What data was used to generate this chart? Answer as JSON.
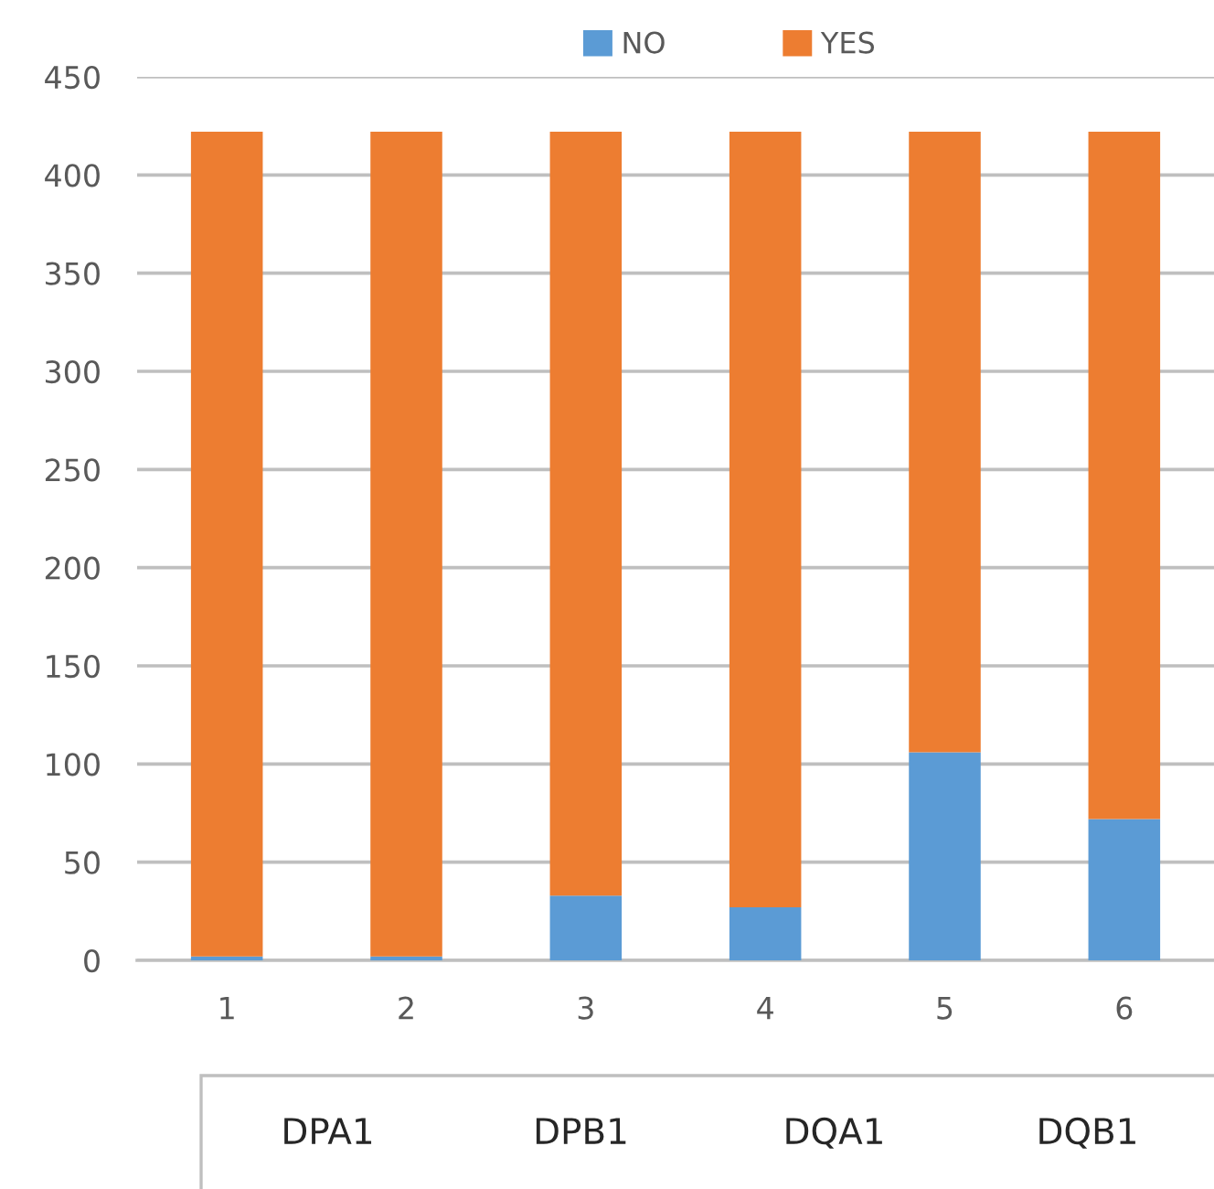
{
  "chart_data": {
    "type": "bar",
    "stacked": true,
    "categories": [
      "1",
      "2",
      "3",
      "4",
      "5",
      "6"
    ],
    "series": [
      {
        "name": "NO",
        "color": "#5b9bd5",
        "values": [
          2,
          2,
          33,
          27,
          106,
          72
        ]
      },
      {
        "name": "YES",
        "color": "#ed7d31",
        "values": [
          420,
          420,
          389,
          395,
          316,
          350
        ]
      }
    ],
    "ylim": [
      0,
      450
    ],
    "yticks": [
      0,
      50,
      100,
      150,
      200,
      250,
      300,
      350,
      400,
      450
    ],
    "grid": "y",
    "legend": "top",
    "annotations": [
      "DPA1",
      "DPB1",
      "DQA1",
      "DQB1"
    ]
  }
}
